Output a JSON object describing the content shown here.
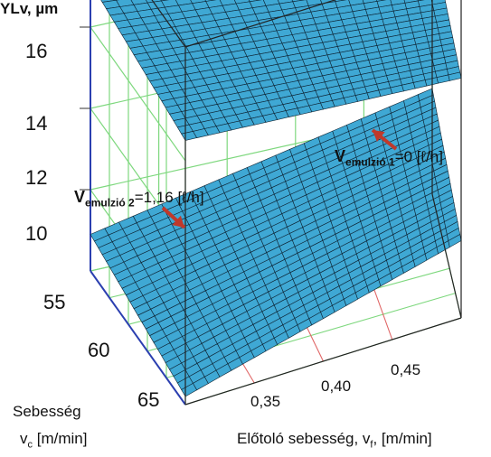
{
  "chart_data": {
    "type": "surface",
    "zlabel": "YLv, µm",
    "zticks": [
      "10",
      "12",
      "14",
      "16"
    ],
    "z_values": [
      10,
      12,
      14,
      16
    ],
    "yaxis": {
      "label_line1": "Sebesség",
      "label_line2": "v",
      "label_sub": "c",
      "label_unit": " [m/min]",
      "ticks": [
        "55",
        "60",
        "65"
      ],
      "values": [
        55,
        60,
        65
      ]
    },
    "xaxis": {
      "label_main": "Előtoló sebesség, v",
      "label_sub": "f",
      "label_unit": ", [m/min]",
      "ticks": [
        "0,35",
        "0,40",
        "0,45"
      ],
      "values": [
        0.35,
        0.4,
        0.45
      ]
    },
    "series": [
      {
        "annotation_prefix": "V",
        "annotation_sub": "emulzió 1",
        "annotation_value": "=0 [ℓ/h]",
        "corners": {
          "vc55_vf030": 15.1,
          "vc55_vf050": 14.3,
          "vc65_vf030": 14.5,
          "vc65_vf050": 13.9
        }
      },
      {
        "annotation_prefix": "V",
        "annotation_sub": "emulzió 2",
        "annotation_value": "=1,16 [ℓ/h]",
        "corners": {
          "vc55_vf030": 8.9,
          "vc55_vf050": 10.6,
          "vc65_vf030": 8.2,
          "vc65_vf050": 9.9
        }
      }
    ],
    "colors": {
      "surface": "#3fa8d4",
      "mesh": "#0d2333",
      "grid": "#7ed87e",
      "axis": "#2b3fb0",
      "arrow": "#c0392b",
      "box": "#222222",
      "redgrid": "#e06666"
    }
  }
}
